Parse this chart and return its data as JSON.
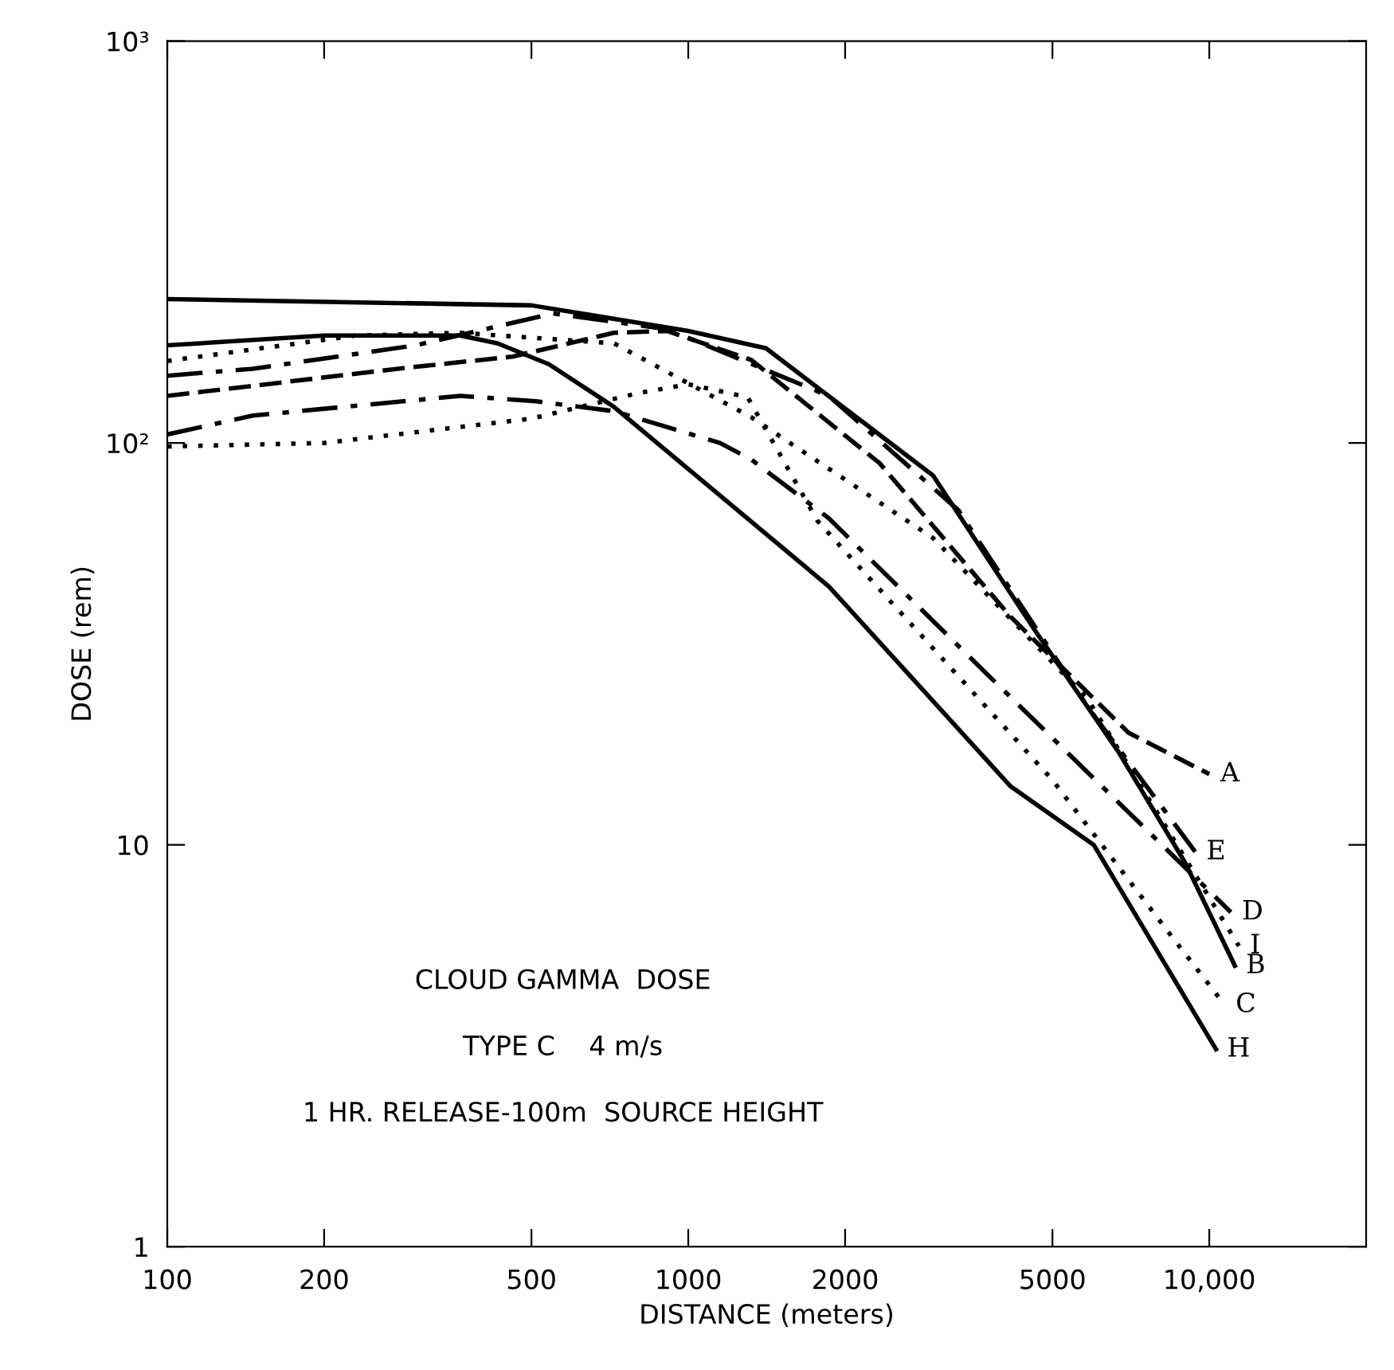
{
  "chart_data": {
    "type": "line",
    "xlabel": "DISTANCE (meters)",
    "ylabel": "DOSE (rem)",
    "log": "xy",
    "grid": false,
    "legend": false,
    "marker": "none",
    "xlim": [
      100,
      20000
    ],
    "xticks": [
      100,
      200,
      500,
      1000,
      2000,
      5000,
      {
        "value": 10000,
        "label": "10,000"
      }
    ],
    "ylim": [
      1,
      1000
    ],
    "yticks": [
      1,
      10,
      {
        "value": 100,
        "label": "10²"
      },
      {
        "value": 1000,
        "label": "10³"
      }
    ],
    "annotations": [
      "CLOUD GAMMA  DOSE",
      "TYPE C    4 m/s",
      "1 HR. RELEASE-100m  SOURCE HEIGHT"
    ],
    "series": [
      {
        "name": "A",
        "color": "#000000",
        "line_style": "dashed",
        "x": [
          100,
          290,
          460,
          720,
          910,
          1320,
          2330,
          4150,
          7000,
          10000
        ],
        "values": [
          131,
          154,
          164,
          188,
          190,
          161,
          89,
          37,
          19,
          15
        ]
      },
      {
        "name": "E",
        "color": "#000000",
        "line_style": "dashdot",
        "x": [
          100,
          146,
          300,
          550,
          910,
          1860,
          3300,
          5850,
          9400
        ],
        "values": [
          147,
          153,
          175,
          210,
          192,
          131,
          68,
          22,
          9.6
        ]
      },
      {
        "name": "D",
        "color": "#000000",
        "line_style": "dashdot",
        "x": [
          100,
          146,
          365,
          510,
          720,
          1150,
          1320,
          1860,
          3700,
          11000
        ],
        "values": [
          105,
          117,
          131,
          127,
          120,
          100,
          91,
          65,
          27,
          6.8
        ]
      },
      {
        "name": "I",
        "color": "#000000",
        "line_style": "dotted",
        "x": [
          100,
          230,
          365,
          720,
          1320,
          2950,
          5850,
          11400
        ],
        "values": [
          160,
          185,
          188,
          177,
          116,
          58,
          23,
          5.6
        ]
      },
      {
        "name": "B",
        "color": "#000000",
        "line_style": "solid",
        "x": [
          100,
          500,
          1000,
          1410,
          2950,
          4640,
          6700,
          9000,
          11200
        ],
        "values": [
          228,
          220,
          190,
          172,
          83,
          34,
          17,
          9,
          5
        ]
      },
      {
        "name": "C",
        "color": "#000000",
        "line_style": "dotted",
        "x": [
          100,
          200,
          500,
          800,
          1000,
          1300,
          1770,
          5000,
          8400,
          10700
        ],
        "values": [
          98,
          100,
          115,
          133,
          140,
          130,
          64,
          14.5,
          6,
          4
        ]
      },
      {
        "name": "H",
        "color": "#000000",
        "line_style": "solid",
        "x": [
          100,
          200,
          365,
          430,
          540,
          720,
          1440,
          1860,
          4150,
          6000,
          10300
        ],
        "values": [
          175,
          185,
          185,
          177,
          157,
          123,
          58,
          44,
          14,
          10,
          3.1
        ]
      }
    ]
  }
}
